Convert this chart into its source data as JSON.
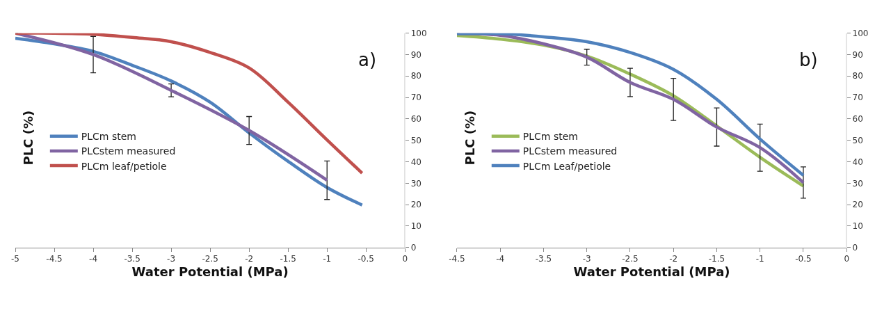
{
  "chart_data": [
    {
      "type": "line",
      "title": "a)",
      "xlabel": "Water Potential (MPa)",
      "ylabel": "PLC (%)",
      "xlim": [
        -5,
        0
      ],
      "xticks": [
        -5,
        -4.5,
        -4,
        -3.5,
        -3,
        -2.5,
        -2,
        -1.5,
        -1,
        -0.5,
        0
      ],
      "ylim": [
        0,
        100
      ],
      "yticks": [
        0,
        10,
        20,
        30,
        40,
        50,
        60,
        70,
        80,
        90,
        100
      ],
      "legend": "left",
      "marker": "none",
      "line_style": "solid",
      "series": [
        {
          "name": "PLCm stem",
          "color": "#4f81bd",
          "x": [
            -5,
            -4.5,
            -4,
            -3.5,
            -3,
            -2.5,
            -2,
            -1.5,
            -1,
            -0.55
          ],
          "values": [
            97.6,
            95,
            91.5,
            85,
            77.7,
            67.8,
            53.5,
            40.2,
            28,
            19.8
          ]
        },
        {
          "name": "PLCstem measured",
          "color": "#8064a2",
          "x": [
            -5,
            -4,
            -3,
            -2,
            -1
          ],
          "values": [
            100,
            90,
            73.3,
            54.6,
            31.4
          ],
          "errors": [
            null,
            8.5,
            3,
            6.5,
            9
          ]
        },
        {
          "name": "PLCm leaf/petiole",
          "color": "#c0504d",
          "x": [
            -5,
            -4.5,
            -4,
            -3.5,
            -3,
            -2.5,
            -2,
            -1.5,
            -1,
            -0.55
          ],
          "values": [
            100,
            100,
            99.5,
            98,
            96,
            91,
            83.8,
            67.8,
            50.2,
            34.7
          ]
        }
      ]
    },
    {
      "type": "line",
      "title": "b)",
      "xlabel": "Water Potential (MPa)",
      "ylabel": "PLC (%)",
      "xlim": [
        -4.5,
        0
      ],
      "xticks": [
        -4.5,
        -4,
        -3.5,
        -3,
        -2.5,
        -2,
        -1.5,
        -1,
        -0.5,
        0
      ],
      "ylim": [
        0,
        100
      ],
      "yticks": [
        0,
        10,
        20,
        30,
        40,
        50,
        60,
        70,
        80,
        90,
        100
      ],
      "legend": "left",
      "marker": "none",
      "line_style": "solid",
      "series": [
        {
          "name": "PLCm stem",
          "color": "#9bbb59",
          "x": [
            -4.5,
            -4,
            -3.5,
            -3,
            -2.5,
            -2,
            -1.5,
            -1,
            -0.5
          ],
          "values": [
            98.9,
            97.2,
            94.4,
            89.3,
            80.9,
            70.8,
            56.7,
            42.1,
            28.7
          ]
        },
        {
          "name": "PLCstem measured",
          "color": "#8064a2",
          "x": [
            -4.5,
            -4,
            -3.5,
            -3,
            -2.5,
            -2,
            -1.5,
            -1,
            -0.5
          ],
          "values": [
            99.8,
            99,
            95,
            88.8,
            77,
            69.1,
            56.2,
            46.6,
            30.3
          ],
          "errors": [
            null,
            null,
            null,
            3.7,
            6.6,
            9.8,
            8.9,
            11,
            7.3
          ]
        },
        {
          "name": "PLCm Leaf/petiole",
          "color": "#4f81bd",
          "x": [
            -4.5,
            -4,
            -3.5,
            -3,
            -2.5,
            -2,
            -1.5,
            -1,
            -0.5
          ],
          "values": [
            99.8,
            99.8,
            98.3,
            96,
            91,
            83.1,
            69.1,
            50.6,
            33.7
          ]
        }
      ]
    }
  ]
}
